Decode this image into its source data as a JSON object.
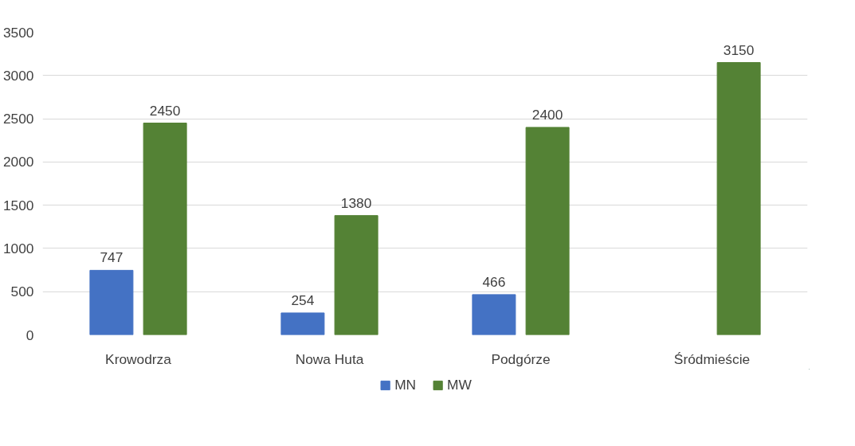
{
  "chart_data": {
    "type": "bar",
    "categories": [
      "Krowodrza",
      "Nowa Huta",
      "Podgórze",
      "Śródmieście"
    ],
    "series": [
      {
        "name": "MN",
        "color": "#4472c4",
        "values": [
          747,
          254,
          466,
          null
        ]
      },
      {
        "name": "MW",
        "color": "#548235",
        "values": [
          2450,
          1380,
          2400,
          3150
        ]
      }
    ],
    "ylim": [
      0,
      3500
    ],
    "yticks": [
      0,
      500,
      1000,
      1500,
      2000,
      2500,
      3000,
      3500
    ],
    "grid": "y",
    "legend": "bottom",
    "data_labels": true
  }
}
